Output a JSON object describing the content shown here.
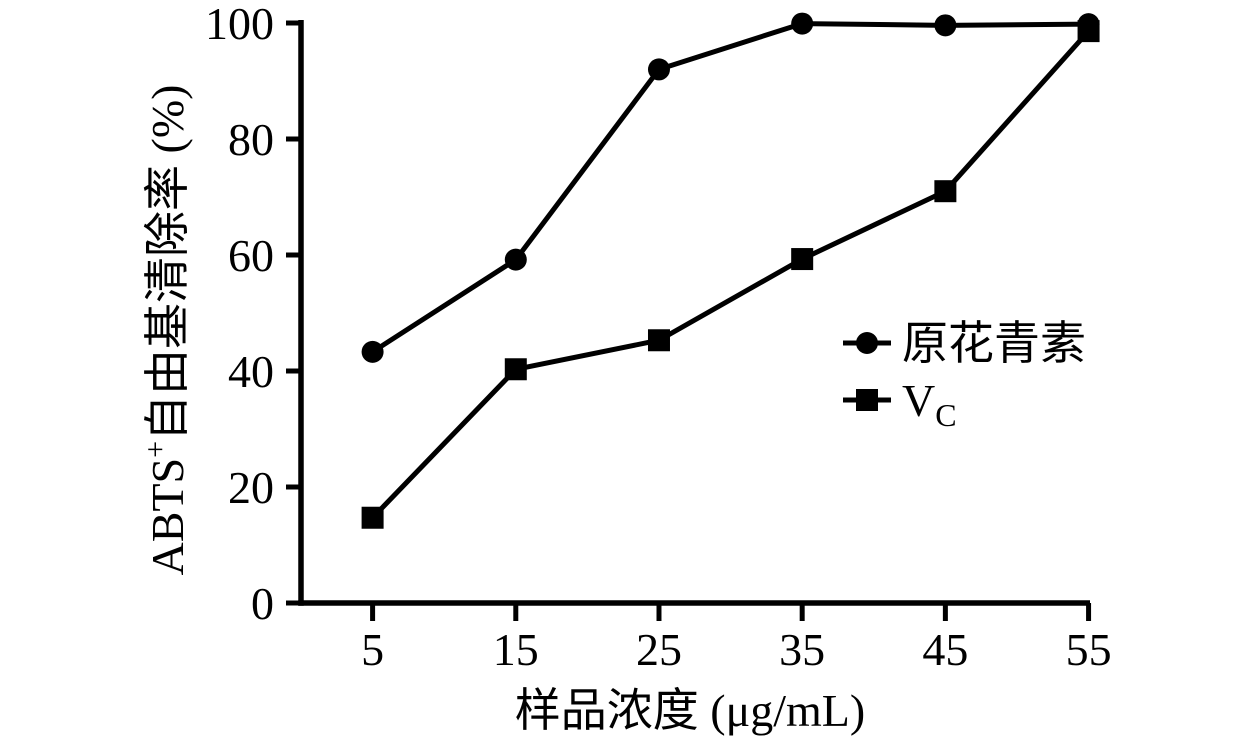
{
  "chart_data": {
    "type": "line",
    "title": "",
    "xlabel": "样品浓度 (μg/mL)",
    "ylabel": "ABTS+自由基清除率 (%)",
    "ylabel_parts": {
      "base": "ABTS",
      "sup": "+",
      "rest": "自由基清除率 (%)"
    },
    "x": [
      5,
      15,
      25,
      35,
      45,
      55
    ],
    "xticks": [
      5,
      15,
      25,
      35,
      45,
      55
    ],
    "yticks": [
      0,
      20,
      40,
      60,
      80,
      100
    ],
    "xlim": [
      0,
      55.1
    ],
    "ylim": [
      0,
      100
    ],
    "grid": false,
    "legend_position": "middle-right",
    "series": [
      {
        "name": "原花青素",
        "name_parts": {
          "base": "原花青素",
          "sub": ""
        },
        "marker": "circle",
        "color": "#000000",
        "values": [
          43.3,
          59.2,
          92.0,
          99.9,
          99.6,
          99.8
        ]
      },
      {
        "name": "VC",
        "name_parts": {
          "base": "V",
          "sub": "C"
        },
        "marker": "square",
        "color": "#000000",
        "values": [
          14.7,
          40.3,
          45.3,
          59.3,
          71.0,
          98.6
        ]
      }
    ],
    "colors": {
      "foreground": "#000000",
      "background": "#ffffff"
    }
  }
}
